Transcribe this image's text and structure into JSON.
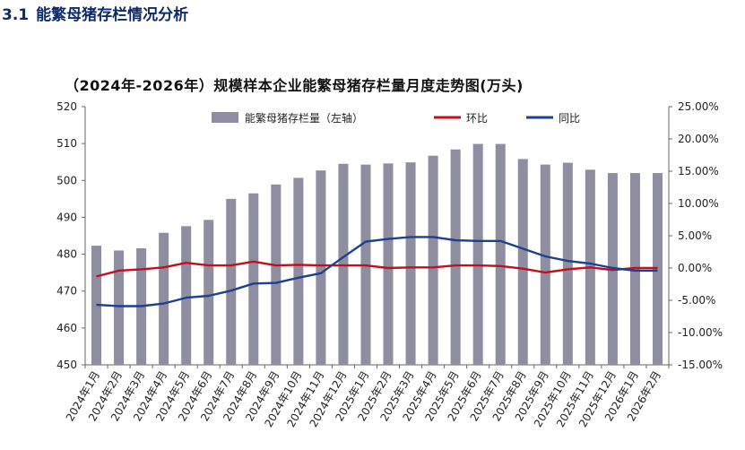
{
  "header": {
    "section_number": "3.1",
    "section_title": "能繁母猪存栏情况分析"
  },
  "chart_data": {
    "type": "bar+line",
    "title": "（2024年-2026年）规模样本企业能繁母猪存栏量月度走势图(万头)",
    "categories": [
      "2024年1月",
      "2024年2月",
      "2024年3月",
      "2024年4月",
      "2024年5月",
      "2024年6月",
      "2024年7月",
      "2024年8月",
      "2024年9月",
      "2024年10月",
      "2024年11月",
      "2024年12月",
      "2025年1月",
      "2025年2月",
      "2025年3月",
      "2025年4月",
      "2025年5月",
      "2025年6月",
      "2025年7月",
      "2025年8月",
      "2025年9月",
      "2025年10月",
      "2025年11月",
      "2025年12月",
      "2026年1月",
      "2026年2月"
    ],
    "left_axis": {
      "min": 450,
      "max": 520,
      "ticks": [
        "450",
        "460",
        "470",
        "480",
        "490",
        "500",
        "510",
        "520"
      ]
    },
    "right_axis": {
      "min": -15,
      "max": 25,
      "ticks": [
        "-15.00%",
        "-10.00%",
        "-5.00%",
        "0.00%",
        "5.00%",
        "10.00%",
        "15.00%",
        "20.00%",
        "25.00%"
      ]
    },
    "series": [
      {
        "name": "能繁母猪存栏量（左轴）",
        "type": "bar",
        "axis": "left",
        "color": "#8e8ea0",
        "values": [
          482.3,
          481.0,
          481.6,
          485.8,
          487.6,
          489.3,
          495.0,
          496.5,
          498.9,
          500.7,
          502.7,
          504.5,
          504.3,
          504.6,
          504.9,
          506.7,
          508.4,
          509.9,
          509.9,
          505.8,
          504.3,
          504.8,
          502.9,
          502.0,
          502.0,
          502.0
        ]
      },
      {
        "name": "环比",
        "type": "line",
        "axis": "right",
        "color": "#c0101e",
        "values": [
          -1.3,
          -0.4,
          -0.2,
          0.1,
          0.8,
          0.4,
          0.4,
          1.0,
          0.4,
          0.5,
          0.4,
          0.4,
          0.4,
          0.0,
          0.1,
          0.1,
          0.4,
          0.4,
          0.3,
          -0.1,
          -0.7,
          -0.2,
          0.1,
          -0.3,
          0.0,
          0.0
        ]
      },
      {
        "name": "同比",
        "type": "line",
        "axis": "right",
        "color": "#1f3f8f",
        "values": [
          -5.7,
          -5.9,
          -5.9,
          -5.5,
          -4.6,
          -4.3,
          -3.5,
          -2.4,
          -2.3,
          -1.5,
          -0.8,
          1.7,
          4.1,
          4.5,
          4.8,
          4.8,
          4.3,
          4.2,
          4.2,
          3.0,
          1.8,
          1.1,
          0.7,
          0.0,
          -0.4,
          -0.4
        ]
      }
    ]
  }
}
